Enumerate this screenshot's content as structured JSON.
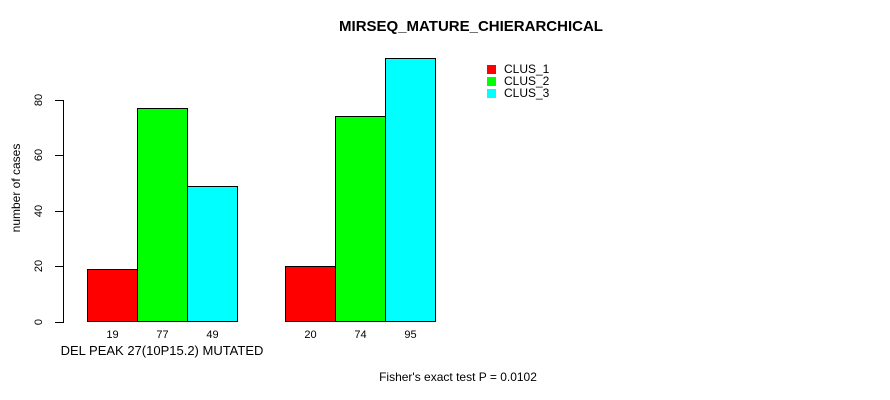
{
  "chart_data": {
    "type": "bar",
    "title": "MIRSEQ_MATURE_CHIERARCHICAL",
    "ylabel": "number of cases",
    "xlabel": "DEL PEAK 27(10P15.2) MUTATED",
    "annotation": "Fisher's exact test P = 0.0102",
    "yticks": [
      0,
      20,
      40,
      60,
      80
    ],
    "ylim": [
      0,
      95
    ],
    "grid": false,
    "legend_position": "top-right",
    "bar_value_labels_shown": true,
    "series": [
      {
        "name": "CLUS_1",
        "color": "#ff0000",
        "values": [
          19,
          20
        ]
      },
      {
        "name": "CLUS_2",
        "color": "#00ff00",
        "values": [
          77,
          74
        ]
      },
      {
        "name": "CLUS_3",
        "color": "#00ffff",
        "values": [
          49,
          95
        ]
      }
    ]
  },
  "colors": {
    "background": "#ffffff",
    "text": "#000000",
    "axis": "#000000",
    "bar_border": "#000000"
  }
}
